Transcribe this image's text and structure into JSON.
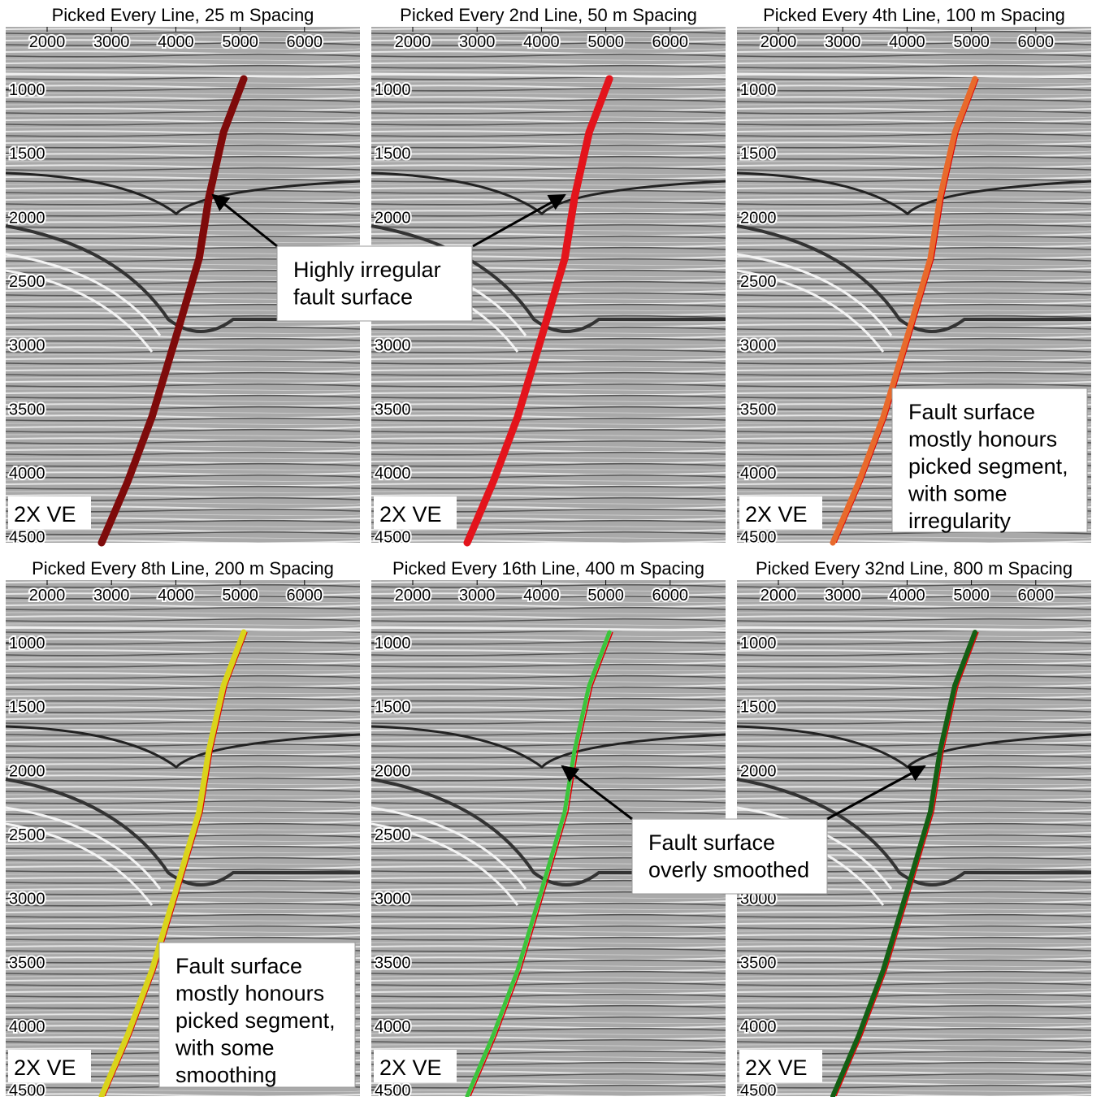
{
  "panels": [
    {
      "title": "Picked Every Line, 25 m Spacing",
      "color": "#7e0b0b"
    },
    {
      "title": "Picked Every 2nd Line, 50 m Spacing",
      "color": "#e3141c"
    },
    {
      "title": "Picked Every 4th Line, 100 m Spacing",
      "color": "#e86a2c"
    },
    {
      "title": "Picked Every 8th Line, 200 m Spacing",
      "color": "#d9d41c"
    },
    {
      "title": "Picked Every 16th Line, 400 m Spacing",
      "color": "#3cc43c"
    },
    {
      "title": "Picked Every 32nd Line, 800 m Spacing",
      "color": "#145f14"
    }
  ],
  "xticks": [
    2000,
    3000,
    4000,
    5000,
    6000
  ],
  "yticks": [
    1000,
    1500,
    2000,
    2500,
    3000,
    3500,
    4000,
    4500
  ],
  "ve_label": "2X VE",
  "annotations": [
    {
      "lines": [
        "Highly irregular",
        "fault surface"
      ]
    },
    {
      "lines": [
        "Fault surface",
        "mostly honours",
        "picked segment,",
        "with some",
        "irregularity"
      ]
    },
    {
      "lines": [
        "Fault surface",
        "mostly honours",
        "picked segment,",
        "with some",
        "smoothing"
      ]
    },
    {
      "lines": [
        "Fault surface",
        "overly smoothed"
      ]
    }
  ]
}
